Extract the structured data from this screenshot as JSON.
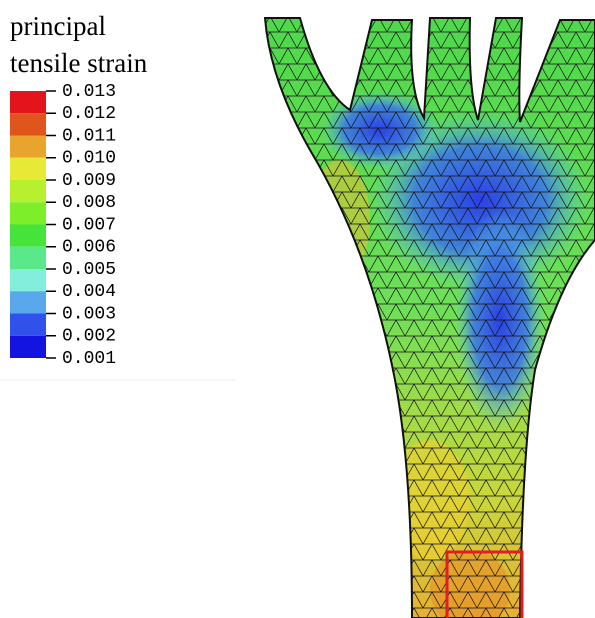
{
  "legend": {
    "title_lines": [
      "principal",
      "tensile strain"
    ],
    "ticks": [
      "0.013",
      "0.012",
      "0.011",
      "0.010",
      "0.009",
      "0.008",
      "0.007",
      "0.006",
      "0.005",
      "0.004",
      "0.003",
      "0.002",
      "0.001"
    ],
    "colors": [
      "#e3141c",
      "#e0551c",
      "#e8a42c",
      "#e6ea36",
      "#b6f02e",
      "#7cee2a",
      "#46e43a",
      "#5ae88a",
      "#84eedc",
      "#5aa8ec",
      "#3052ea",
      "#1414e0"
    ]
  }
}
